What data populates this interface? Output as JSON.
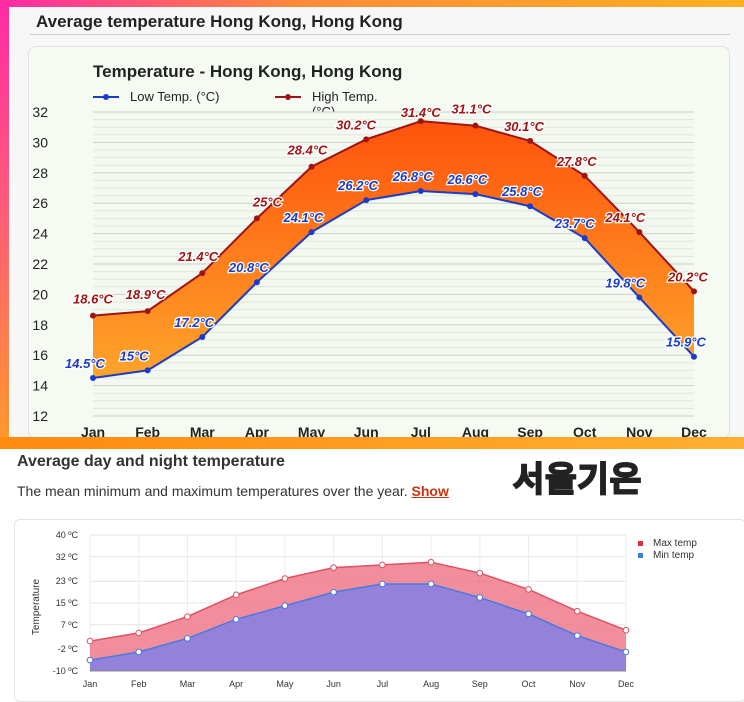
{
  "top_section": {
    "heading": "Average temperature Hong Kong, Hong Kong"
  },
  "bottom_section": {
    "heading": "Average day and night temperature",
    "subtitle": "The mean minimum and maximum temperatures over the year.",
    "link": "Show",
    "overlay_text": "서울기온"
  },
  "colors": {
    "low": "#1a3cc8",
    "high": "#a01414",
    "band_top": "#ff5a00",
    "band_bottom": "#ff9a1a",
    "max_fill": "#f07a8a",
    "min_fill": "#8a80e0",
    "max_line": "#e05060",
    "min_line": "#4a7ae0"
  },
  "chart_data": [
    {
      "type": "area",
      "title": "Temperature - Hong Kong, Hong Kong",
      "categories": [
        "Jan",
        "Feb",
        "Mar",
        "Apr",
        "May",
        "Jun",
        "Jul",
        "Aug",
        "Sep",
        "Oct",
        "Nov",
        "Dec"
      ],
      "ylim": [
        12,
        32
      ],
      "yticks": [
        "12",
        "14",
        "16",
        "18",
        "20",
        "22",
        "24",
        "26",
        "28",
        "30",
        "32"
      ],
      "grid": true,
      "legend_placement": "top-left",
      "series": [
        {
          "name": "Low Temp. (°C)",
          "values": [
            14.5,
            15,
            17.2,
            20.8,
            24.1,
            26.2,
            26.8,
            26.6,
            25.8,
            23.7,
            19.8,
            15.9
          ],
          "labels": [
            "14.5°C",
            "15°C",
            "17.2°C",
            "20.8°C",
            "24.1°C",
            "26.2°C",
            "26.8°C",
            "26.6°C",
            "25.8°C",
            "23.7°C",
            "19.8°C",
            "15.9°C"
          ]
        },
        {
          "name": "High Temp. (°C)",
          "values": [
            18.6,
            18.9,
            21.4,
            25,
            28.4,
            30.2,
            31.4,
            31.1,
            30.1,
            27.8,
            24.1,
            20.2
          ],
          "labels": [
            "18.6°C",
            "18.9°C",
            "21.4°C",
            "25°C",
            "28.4°C",
            "30.2°C",
            "31.4°C",
            "31.1°C",
            "30.1°C",
            "27.8°C",
            "24.1°C",
            "20.2°C"
          ]
        }
      ]
    },
    {
      "type": "area",
      "ylabel": "Temperature",
      "categories": [
        "Jan",
        "Feb",
        "Mar",
        "Apr",
        "May",
        "Jun",
        "Jul",
        "Aug",
        "Sep",
        "Oct",
        "Nov",
        "Dec"
      ],
      "ylim": [
        -10,
        40
      ],
      "yticks": [
        -10,
        -2,
        7,
        15,
        23,
        32,
        40
      ],
      "ytick_labels": [
        "-10 ºC",
        "-2 ºC",
        "7 ºC",
        "15 ºC",
        "23 ºC",
        "32 ºC",
        "40 ºC"
      ],
      "grid": true,
      "legend_placement": "top-right",
      "series": [
        {
          "name": "Max temp",
          "values": [
            1,
            4,
            10,
            18,
            24,
            28,
            29,
            30,
            26,
            20,
            12,
            5
          ]
        },
        {
          "name": "Min temp",
          "values": [
            -6,
            -3,
            2,
            9,
            14,
            19,
            22,
            22,
            17,
            11,
            3,
            -3
          ]
        }
      ]
    }
  ]
}
